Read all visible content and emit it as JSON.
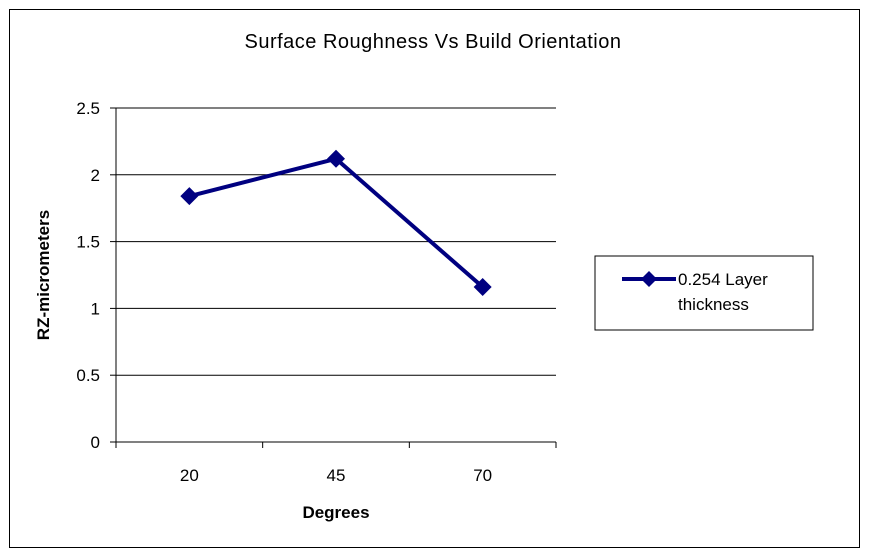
{
  "chart_data": {
    "type": "line",
    "title": "Surface Roughness Vs Build Orientation",
    "xlabel": "Degrees",
    "ylabel": "RZ-micrometers",
    "categories": [
      "20",
      "45",
      "70"
    ],
    "series": [
      {
        "name": "0.254 Layer thickness",
        "legend_lines": [
          "0.254 Layer",
          "thickness"
        ],
        "values": [
          1.84,
          2.12,
          1.16
        ],
        "color": "#000080",
        "marker": "diamond"
      }
    ],
    "ylim": [
      0,
      2.5
    ],
    "yticks": [
      "0",
      "0.5",
      "1",
      "1.5",
      "2",
      "2.5"
    ],
    "grid": true,
    "legend_position": "right"
  }
}
